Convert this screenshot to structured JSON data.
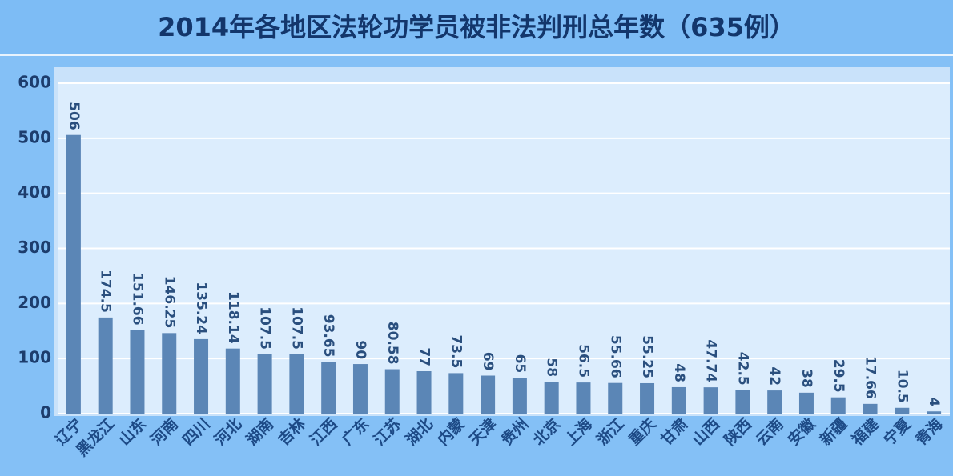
{
  "chart_data": {
    "type": "bar",
    "title": "2014年各地区法轮功学员被非法判刑总年数（635例）",
    "categories": [
      "辽宁",
      "黑龙江",
      "山东",
      "河南",
      "四川",
      "河北",
      "湖南",
      "吉林",
      "江西",
      "广东",
      "江苏",
      "湖北",
      "内蒙",
      "天津",
      "贵州",
      "北京",
      "上海",
      "浙江",
      "重庆",
      "甘肃",
      "山西",
      "陕西",
      "云南",
      "安徽",
      "新疆",
      "福建",
      "宁夏",
      "青海"
    ],
    "values": [
      506,
      174.5,
      151.66,
      146.25,
      135.24,
      118.14,
      107.5,
      107.5,
      93.65,
      90,
      80.58,
      77,
      73.5,
      69,
      65,
      58,
      56.5,
      55.66,
      55.25,
      48,
      47.74,
      42.5,
      42,
      38,
      29.5,
      17.66,
      10.5,
      4
    ],
    "color": "#5b86b6",
    "ylim": [
      0,
      600
    ],
    "yticks": [
      0,
      100,
      200,
      300,
      400,
      500,
      600
    ],
    "grid": true
  }
}
